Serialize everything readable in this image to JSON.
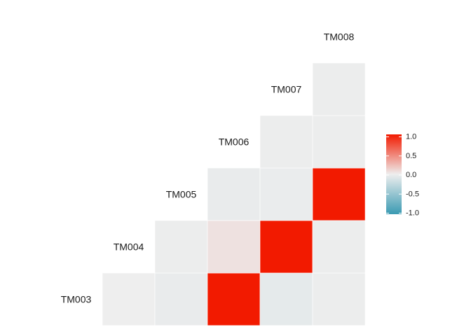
{
  "chart_data": {
    "type": "heatmap",
    "title": "",
    "variables": [
      "TM003",
      "TM004",
      "TM005",
      "TM006",
      "TM007",
      "TM008"
    ],
    "cells": [
      {
        "row": "TM003",
        "col": "TM004",
        "value": 0.0
      },
      {
        "row": "TM003",
        "col": "TM005",
        "value": -0.03
      },
      {
        "row": "TM003",
        "col": "TM006",
        "value": 1.0
      },
      {
        "row": "TM003",
        "col": "TM007",
        "value": -0.05
      },
      {
        "row": "TM003",
        "col": "TM008",
        "value": -0.01
      },
      {
        "row": "TM004",
        "col": "TM005",
        "value": -0.01
      },
      {
        "row": "TM004",
        "col": "TM006",
        "value": 0.06
      },
      {
        "row": "TM004",
        "col": "TM007",
        "value": 1.0
      },
      {
        "row": "TM004",
        "col": "TM008",
        "value": -0.01
      },
      {
        "row": "TM005",
        "col": "TM006",
        "value": -0.03
      },
      {
        "row": "TM005",
        "col": "TM007",
        "value": -0.02
      },
      {
        "row": "TM005",
        "col": "TM008",
        "value": 1.0
      },
      {
        "row": "TM006",
        "col": "TM007",
        "value": -0.01
      },
      {
        "row": "TM006",
        "col": "TM008",
        "value": -0.01
      },
      {
        "row": "TM007",
        "col": "TM008",
        "value": -0.01
      }
    ],
    "color_scale": {
      "min": -1.0,
      "mid": 0.0,
      "max": 1.0,
      "low_color": "#3a9ab2",
      "mid_color": "#eeeeee",
      "high_color": "#f21a00"
    },
    "legend": {
      "position": "right",
      "ticks": [
        "1.0",
        "0.5",
        "0.0",
        "-0.5",
        "-1.0"
      ]
    }
  }
}
